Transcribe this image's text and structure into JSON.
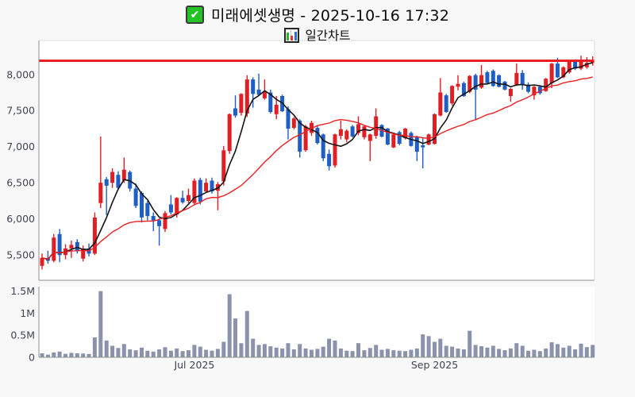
{
  "header": {
    "checkbox_icon": "green-checked-checkbox",
    "title": "미래에셋생명 - 2025-10-16 17:32",
    "chart_type_icon": "mini-bar-chart",
    "chart_type_label": "일간차트",
    "checkmark_glyph": "✔"
  },
  "colors": {
    "up": "#e01f25",
    "down": "#1f5ec4",
    "sma_fast": "#141414",
    "sma_slow": "#ed2024",
    "resistance": "#ee1c23",
    "volume_bar": "#8b92ac",
    "page_bg": "#f8f8f8",
    "plot_bg": "#ffffff",
    "axis_text": "#3f4450",
    "border_strong": "#8f8f8f",
    "border_light": "#dcdcdc"
  },
  "chart_data": {
    "type": "candlestick",
    "title": "미래에셋생명 - 2025-10-16 17:32",
    "subtitle": "일간차트",
    "grid": false,
    "legend_position": "none",
    "price_axis": {
      "ylim": [
        5150,
        8470
      ],
      "ticks": [
        5500,
        6000,
        6500,
        7000,
        7500,
        8000
      ],
      "tick_labels": [
        "5,500",
        "6,000",
        "6,500",
        "7,000",
        "7,500",
        "8,000"
      ]
    },
    "volume_axis": {
      "ylim": [
        0,
        1600000
      ],
      "ticks": [
        0,
        500000,
        1000000,
        1500000
      ],
      "tick_labels": [
        "0",
        "0.5M",
        "1M",
        "1.5M"
      ]
    },
    "x_ticks": [
      {
        "index": 26,
        "label": "Jul 2025"
      },
      {
        "index": 67,
        "label": "Sep 2025"
      }
    ],
    "resistance_line": 8190,
    "overlays": [
      {
        "type": "sma",
        "period": 5,
        "color_key": "sma_fast"
      },
      {
        "type": "sma",
        "period": 20,
        "color_key": "sma_slow"
      }
    ],
    "ohlc": [
      [
        5350,
        5520,
        5300,
        5460
      ],
      [
        5460,
        5560,
        5380,
        5420
      ],
      [
        5420,
        5790,
        5400,
        5740
      ],
      [
        5790,
        5860,
        5400,
        5500
      ],
      [
        5500,
        5650,
        5440,
        5590
      ],
      [
        5590,
        5700,
        5460,
        5640
      ],
      [
        5680,
        5720,
        5520,
        5560
      ],
      [
        5450,
        5630,
        5410,
        5590
      ],
      [
        5590,
        5660,
        5480,
        5520
      ],
      [
        5520,
        6090,
        5500,
        6020
      ],
      [
        6220,
        7140,
        6150,
        6500
      ],
      [
        6550,
        6580,
        6050,
        6460
      ],
      [
        6500,
        6700,
        6430,
        6650
      ],
      [
        6610,
        6660,
        6400,
        6430
      ],
      [
        6530,
        6850,
        6500,
        6680
      ],
      [
        6650,
        6670,
        6380,
        6420
      ],
      [
        6420,
        6490,
        6150,
        6180
      ],
      [
        6360,
        6380,
        5950,
        6020
      ],
      [
        6220,
        6250,
        5980,
        6040
      ],
      [
        6040,
        6090,
        5830,
        5980
      ],
      [
        5980,
        6010,
        5630,
        5900
      ],
      [
        5860,
        6110,
        5820,
        6080
      ],
      [
        6200,
        6330,
        6060,
        6090
      ],
      [
        6060,
        6300,
        6020,
        6290
      ],
      [
        6290,
        6390,
        6210,
        6230
      ],
      [
        6250,
        6420,
        6220,
        6330
      ],
      [
        6220,
        6560,
        6190,
        6530
      ],
      [
        6540,
        6570,
        6200,
        6240
      ],
      [
        6380,
        6560,
        6360,
        6500
      ],
      [
        6530,
        6570,
        6350,
        6380
      ],
      [
        6390,
        6510,
        6120,
        6480
      ],
      [
        6520,
        7010,
        6460,
        6950
      ],
      [
        6940,
        7460,
        6900,
        7450
      ],
      [
        7530,
        7710,
        7400,
        7430
      ],
      [
        7470,
        7740,
        7430,
        7730
      ],
      [
        7460,
        7990,
        7410,
        7930
      ],
      [
        7930,
        7960,
        7540,
        7730
      ],
      [
        7790,
        8010,
        7700,
        7720
      ],
      [
        7670,
        7930,
        7650,
        7760
      ],
      [
        7750,
        7790,
        7460,
        7480
      ],
      [
        7450,
        7700,
        7380,
        7580
      ],
      [
        7700,
        7720,
        7480,
        7490
      ],
      [
        7520,
        7560,
        7100,
        7250
      ],
      [
        7260,
        7410,
        7240,
        7390
      ],
      [
        7360,
        7380,
        6850,
        6930
      ],
      [
        6950,
        7300,
        6930,
        7280
      ],
      [
        7190,
        7360,
        7150,
        7330
      ],
      [
        7260,
        7290,
        7030,
        7050
      ],
      [
        7170,
        7180,
        6800,
        6840
      ],
      [
        6900,
        6960,
        6670,
        6730
      ],
      [
        6740,
        7180,
        6710,
        7170
      ],
      [
        7150,
        7360,
        7100,
        7240
      ],
      [
        7100,
        7240,
        7060,
        7220
      ],
      [
        7280,
        7300,
        7130,
        7140
      ],
      [
        7190,
        7420,
        7160,
        7310
      ],
      [
        7130,
        7290,
        7100,
        7280
      ],
      [
        7080,
        7180,
        6800,
        7170
      ],
      [
        7150,
        7530,
        7110,
        7420
      ],
      [
        7300,
        7310,
        7130,
        7140
      ],
      [
        7250,
        7260,
        7020,
        7030
      ],
      [
        6990,
        7180,
        6980,
        7170
      ],
      [
        7200,
        7220,
        7020,
        7040
      ],
      [
        7120,
        7260,
        7100,
        7250
      ],
      [
        7190,
        7210,
        7000,
        7010
      ],
      [
        7140,
        7150,
        6800,
        6930
      ],
      [
        7020,
        7120,
        6700,
        6990
      ],
      [
        7030,
        7180,
        7020,
        7170
      ],
      [
        7040,
        7460,
        7030,
        7450
      ],
      [
        7430,
        7950,
        7420,
        7750
      ],
      [
        7710,
        7730,
        7470,
        7480
      ],
      [
        7600,
        7850,
        7570,
        7840
      ],
      [
        7830,
        7990,
        7780,
        7870
      ],
      [
        7880,
        7900,
        7690,
        7700
      ],
      [
        7760,
        7990,
        7740,
        7980
      ],
      [
        7990,
        8010,
        7370,
        7790
      ],
      [
        7820,
        8130,
        7800,
        7990
      ],
      [
        8030,
        8050,
        7870,
        7880
      ],
      [
        8050,
        8070,
        7830,
        7840
      ],
      [
        7990,
        8000,
        7820,
        7830
      ],
      [
        7900,
        7910,
        7780,
        7790
      ],
      [
        7700,
        7810,
        7620,
        7800
      ],
      [
        7860,
        8150,
        7840,
        8020
      ],
      [
        8020,
        8060,
        7790,
        7860
      ],
      [
        7860,
        7890,
        7740,
        7760
      ],
      [
        7710,
        7840,
        7650,
        7830
      ],
      [
        7830,
        7850,
        7720,
        7740
      ],
      [
        7770,
        7950,
        7760,
        7940
      ],
      [
        7880,
        8160,
        7810,
        8150
      ],
      [
        8150,
        8230,
        7950,
        7960
      ],
      [
        7960,
        8110,
        7950,
        8100
      ],
      [
        8030,
        8190,
        8010,
        8180
      ],
      [
        8180,
        8210,
        8060,
        8080
      ],
      [
        8080,
        8260,
        8060,
        8200
      ],
      [
        8100,
        8240,
        8080,
        8160
      ],
      [
        8160,
        8250,
        8120,
        8190
      ]
    ],
    "volumes": [
      90000,
      60000,
      110000,
      130000,
      80000,
      100000,
      90000,
      85000,
      75000,
      450000,
      1500000,
      380000,
      260000,
      210000,
      300000,
      180000,
      160000,
      220000,
      150000,
      130000,
      180000,
      230000,
      150000,
      200000,
      140000,
      160000,
      280000,
      240000,
      170000,
      150000,
      190000,
      350000,
      1430000,
      880000,
      320000,
      1050000,
      420000,
      280000,
      300000,
      250000,
      220000,
      200000,
      320000,
      180000,
      300000,
      200000,
      170000,
      190000,
      240000,
      420000,
      380000,
      200000,
      150000,
      140000,
      320000,
      160000,
      210000,
      280000,
      170000,
      190000,
      160000,
      150000,
      140000,
      170000,
      200000,
      520000,
      480000,
      350000,
      420000,
      260000,
      240000,
      200000,
      180000,
      600000,
      280000,
      250000,
      220000,
      260000,
      190000,
      160000,
      200000,
      320000,
      260000,
      150000,
      170000,
      140000,
      200000,
      340000,
      300000,
      220000,
      260000,
      180000,
      310000,
      230000,
      280000
    ]
  }
}
